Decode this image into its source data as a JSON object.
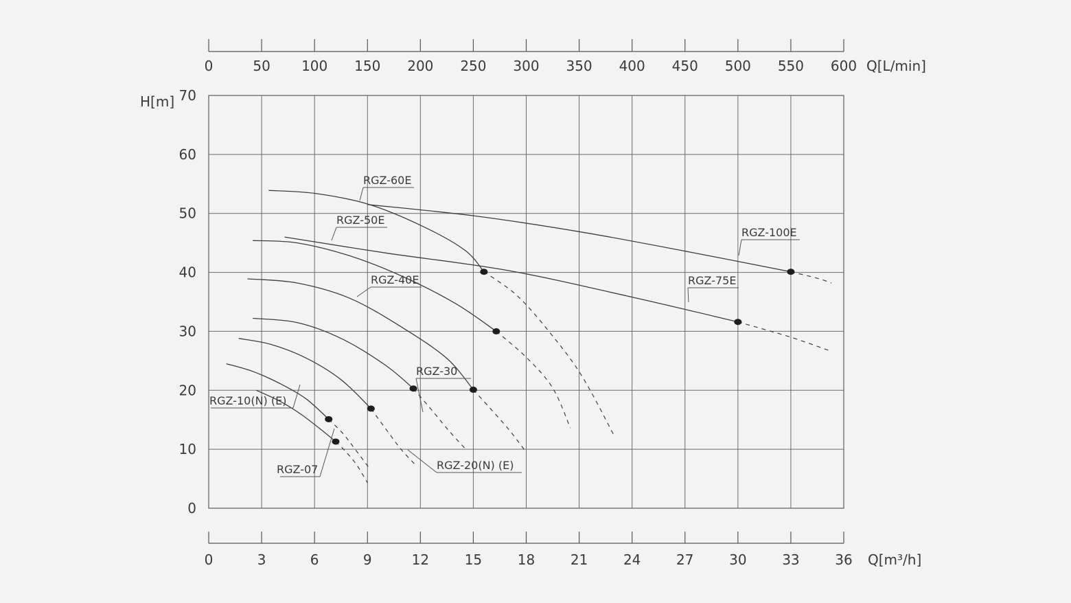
{
  "chart_data": {
    "type": "line",
    "title": "",
    "xlabel": "Q[m³/h]",
    "x2label": "Q[L/min]",
    "ylabel": "H[m]",
    "xlim": [
      0,
      36
    ],
    "ylim": [
      0,
      70
    ],
    "x2lim": [
      0,
      600
    ],
    "x_ticks": [
      "0",
      "3",
      "6",
      "9",
      "12",
      "15",
      "18",
      "21",
      "24",
      "27",
      "30",
      "33",
      "36"
    ],
    "x2_ticks": [
      "0",
      "50",
      "100",
      "150",
      "200",
      "250",
      "300",
      "350",
      "400",
      "450",
      "500",
      "550",
      "600"
    ],
    "y_ticks": [
      "0",
      "10",
      "20",
      "30",
      "40",
      "50",
      "60",
      "70"
    ],
    "grid": true,
    "legend": "inline labels",
    "series": [
      {
        "name": "RGZ-07",
        "solid": [
          [
            2.7,
            20.0
          ],
          [
            4.0,
            18.2
          ],
          [
            5.2,
            16.0
          ],
          [
            6.3,
            13.5
          ],
          [
            7.2,
            11.3
          ]
        ],
        "dashed": [
          [
            7.2,
            11.3
          ],
          [
            7.8,
            9.5
          ],
          [
            8.4,
            7.3
          ],
          [
            9.0,
            4.3
          ]
        ],
        "point": [
          7.2,
          11.3
        ]
      },
      {
        "name": "RGZ-10(N)(E)",
        "solid": [
          [
            1.0,
            24.5
          ],
          [
            2.5,
            23.2
          ],
          [
            4.0,
            21.2
          ],
          [
            5.5,
            18.6
          ],
          [
            6.8,
            15.1
          ]
        ],
        "dashed": [
          [
            6.8,
            15.1
          ],
          [
            7.6,
            12.7
          ],
          [
            8.3,
            10.0
          ],
          [
            9.1,
            6.8
          ]
        ],
        "point": [
          6.8,
          15.1
        ]
      },
      {
        "name": "RGZ-20(N)(E)",
        "solid": [
          [
            1.7,
            28.8
          ],
          [
            3.5,
            27.8
          ],
          [
            5.5,
            25.5
          ],
          [
            7.5,
            21.8
          ],
          [
            9.2,
            16.9
          ]
        ],
        "dashed": [
          [
            9.2,
            16.9
          ],
          [
            10.1,
            13.2
          ],
          [
            10.9,
            10.0
          ],
          [
            11.7,
            7.4
          ]
        ],
        "point": [
          9.2,
          16.9
        ]
      },
      {
        "name": "RGZ-30",
        "solid": [
          [
            2.5,
            32.2
          ],
          [
            5.0,
            31.5
          ],
          [
            7.5,
            28.8
          ],
          [
            10.0,
            24.3
          ],
          [
            11.6,
            20.3
          ]
        ],
        "dashed": [
          [
            11.6,
            20.3
          ],
          [
            12.6,
            16.8
          ],
          [
            13.6,
            13.2
          ],
          [
            14.6,
            9.9
          ]
        ],
        "point": [
          11.6,
          20.3
        ]
      },
      {
        "name": "RGZ-40E",
        "solid": [
          [
            2.2,
            38.9
          ],
          [
            5.0,
            38.2
          ],
          [
            8.0,
            35.6
          ],
          [
            11.0,
            30.6
          ],
          [
            13.5,
            25.4
          ],
          [
            15.0,
            20.1
          ]
        ],
        "dashed": [
          [
            15.0,
            20.1
          ],
          [
            16.0,
            16.8
          ],
          [
            17.0,
            13.4
          ],
          [
            17.9,
            9.9
          ]
        ],
        "point": [
          15.0,
          20.1
        ]
      },
      {
        "name": "RGZ-50E",
        "solid": [
          [
            2.5,
            45.4
          ],
          [
            5.0,
            45.0
          ],
          [
            8.0,
            42.8
          ],
          [
            11.0,
            39.3
          ],
          [
            14.0,
            34.7
          ],
          [
            16.3,
            30.0
          ]
        ],
        "dashed": [
          [
            16.3,
            30.0
          ],
          [
            18.0,
            25.6
          ],
          [
            19.5,
            20.4
          ],
          [
            20.5,
            13.6
          ]
        ],
        "point": [
          16.3,
          30.0
        ]
      },
      {
        "name": "RGZ-60E",
        "solid": [
          [
            3.4,
            53.9
          ],
          [
            6.0,
            53.4
          ],
          [
            9.0,
            51.6
          ],
          [
            12.0,
            48.0
          ],
          [
            14.5,
            43.8
          ],
          [
            15.6,
            40.1
          ]
        ],
        "dashed": [
          [
            15.6,
            40.1
          ],
          [
            17.5,
            36.0
          ],
          [
            19.5,
            29.2
          ],
          [
            21.2,
            22.2
          ],
          [
            23.0,
            12.2
          ]
        ],
        "point": [
          15.6,
          40.1
        ]
      },
      {
        "name": "RGZ-75E",
        "solid": [
          [
            4.3,
            46.0
          ],
          [
            10.0,
            43.3
          ],
          [
            17.0,
            40.3
          ],
          [
            24.0,
            35.8
          ],
          [
            30.0,
            31.6
          ]
        ],
        "dashed": [
          [
            30.0,
            31.6
          ],
          [
            33.0,
            29.0
          ],
          [
            35.3,
            26.6
          ]
        ],
        "point": [
          30.0,
          31.6
        ]
      },
      {
        "name": "RGZ-100E",
        "solid": [
          [
            9.0,
            51.5
          ],
          [
            15.0,
            49.6
          ],
          [
            21.0,
            46.9
          ],
          [
            27.0,
            43.6
          ],
          [
            33.0,
            40.1
          ]
        ],
        "dashed": [
          [
            33.0,
            40.1
          ],
          [
            34.5,
            39.0
          ],
          [
            35.3,
            38.2
          ]
        ],
        "point": [
          33.0,
          40.1
        ]
      }
    ]
  }
}
